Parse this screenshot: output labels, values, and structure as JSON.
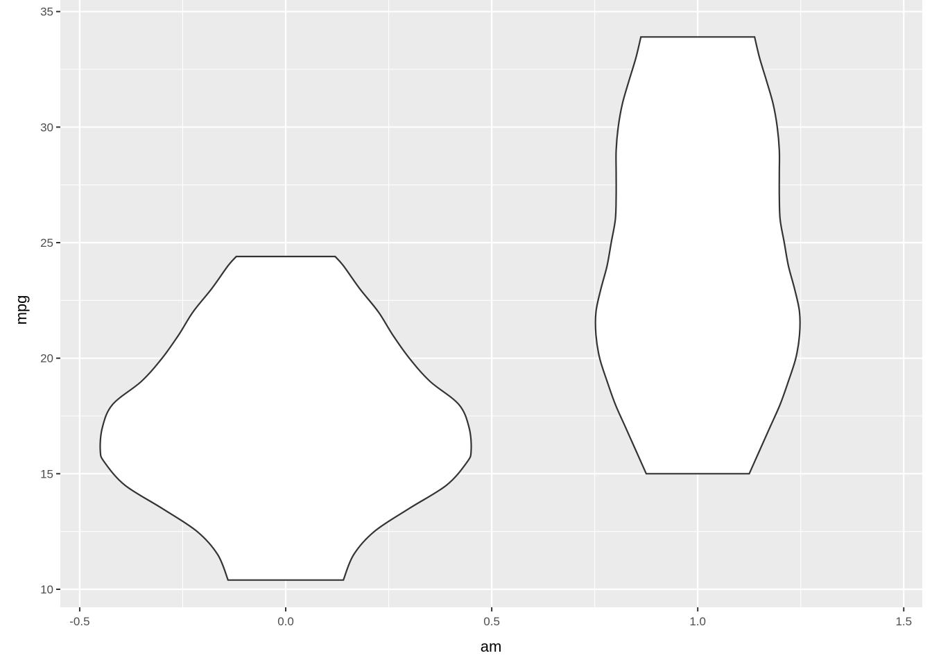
{
  "chart_data": {
    "type": "violin",
    "title": "",
    "xlabel": "am",
    "ylabel": "mpg",
    "xlim": [
      -0.547,
      1.545
    ],
    "ylim": [
      9.22,
      35.5
    ],
    "x_ticks": [
      -0.5,
      0.0,
      0.5,
      1.0,
      1.5
    ],
    "x_tick_labels": [
      "-0.5",
      "0.0",
      "0.5",
      "1.0",
      "1.5"
    ],
    "y_ticks": [
      10,
      15,
      20,
      25,
      30,
      35
    ],
    "y_tick_labels": [
      "10",
      "15",
      "20",
      "25",
      "30",
      "35"
    ],
    "grid": true,
    "panel_background": "#EBEBEB",
    "fill": "#FFFFFF",
    "outline": "#333333",
    "violins": [
      {
        "x": 0,
        "mpg": [
          10.4,
          11.5,
          12.5,
          13.5,
          14.5,
          15.5,
          16,
          17,
          18,
          19,
          20,
          21,
          22,
          23,
          24,
          24.4
        ],
        "half_width": [
          0.14,
          0.165,
          0.215,
          0.3,
          0.39,
          0.44,
          0.45,
          0.445,
          0.42,
          0.35,
          0.3,
          0.26,
          0.225,
          0.18,
          0.14,
          0.12
        ]
      },
      {
        "x": 1,
        "mpg": [
          15,
          16,
          17,
          18,
          19,
          20,
          21,
          22,
          23,
          24,
          25,
          26,
          27,
          28,
          29,
          30,
          31,
          32,
          33,
          33.9
        ],
        "half_width": [
          0.125,
          0.15,
          0.175,
          0.2,
          0.22,
          0.238,
          0.247,
          0.247,
          0.235,
          0.22,
          0.21,
          0.2,
          0.198,
          0.198,
          0.198,
          0.193,
          0.183,
          0.167,
          0.15,
          0.138
        ]
      }
    ]
  }
}
